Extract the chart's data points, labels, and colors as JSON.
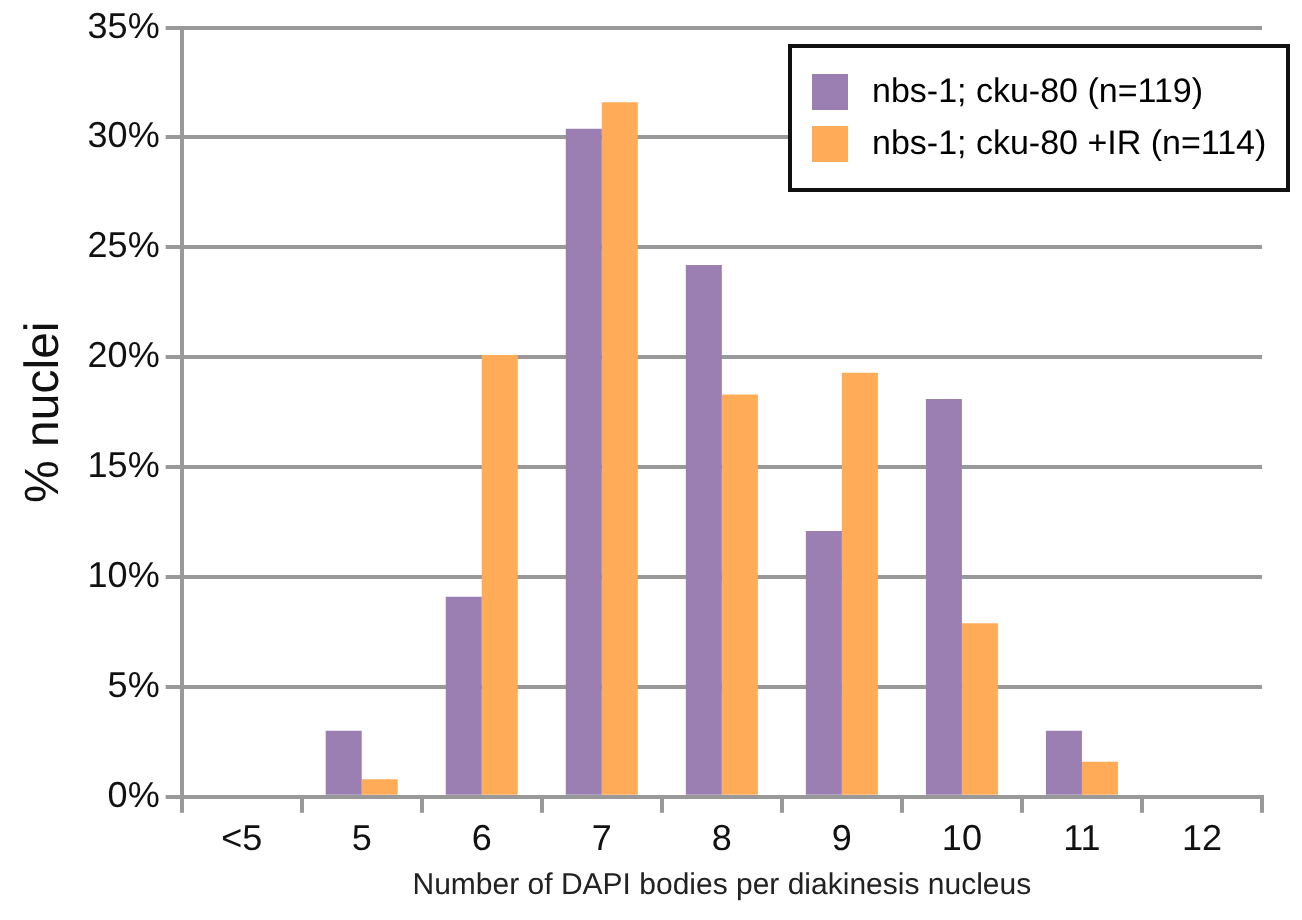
{
  "chart_data": {
    "type": "bar",
    "xlabel": "Number of DAPI bodies per diakinesis nucleus",
    "ylabel": "% nuclei",
    "categories": [
      "<5",
      "5",
      "6",
      "7",
      "8",
      "9",
      "10",
      "11",
      "12"
    ],
    "series": [
      {
        "name": "nbs-1; cku-80 (n=119)",
        "color": "#9b7fb3",
        "values": [
          0,
          3.0,
          9.1,
          30.4,
          24.2,
          12.1,
          18.1,
          3.0,
          0
        ]
      },
      {
        "name": "nbs-1; cku-80 +IR (n=114)",
        "color": "#ffab57",
        "values": [
          0,
          0.8,
          20.1,
          31.6,
          18.3,
          19.3,
          7.9,
          1.6,
          0
        ]
      }
    ],
    "ylim": [
      0,
      35
    ],
    "yticks": [
      {
        "value": 0,
        "label": "0%"
      },
      {
        "value": 5,
        "label": "5%"
      },
      {
        "value": 10,
        "label": "10%"
      },
      {
        "value": 15,
        "label": "15%"
      },
      {
        "value": 20,
        "label": "20%"
      },
      {
        "value": 25,
        "label": "25%"
      },
      {
        "value": 30,
        "label": "30%"
      },
      {
        "value": 35,
        "label": "35%"
      }
    ],
    "grid": "y",
    "legend": "top right"
  }
}
